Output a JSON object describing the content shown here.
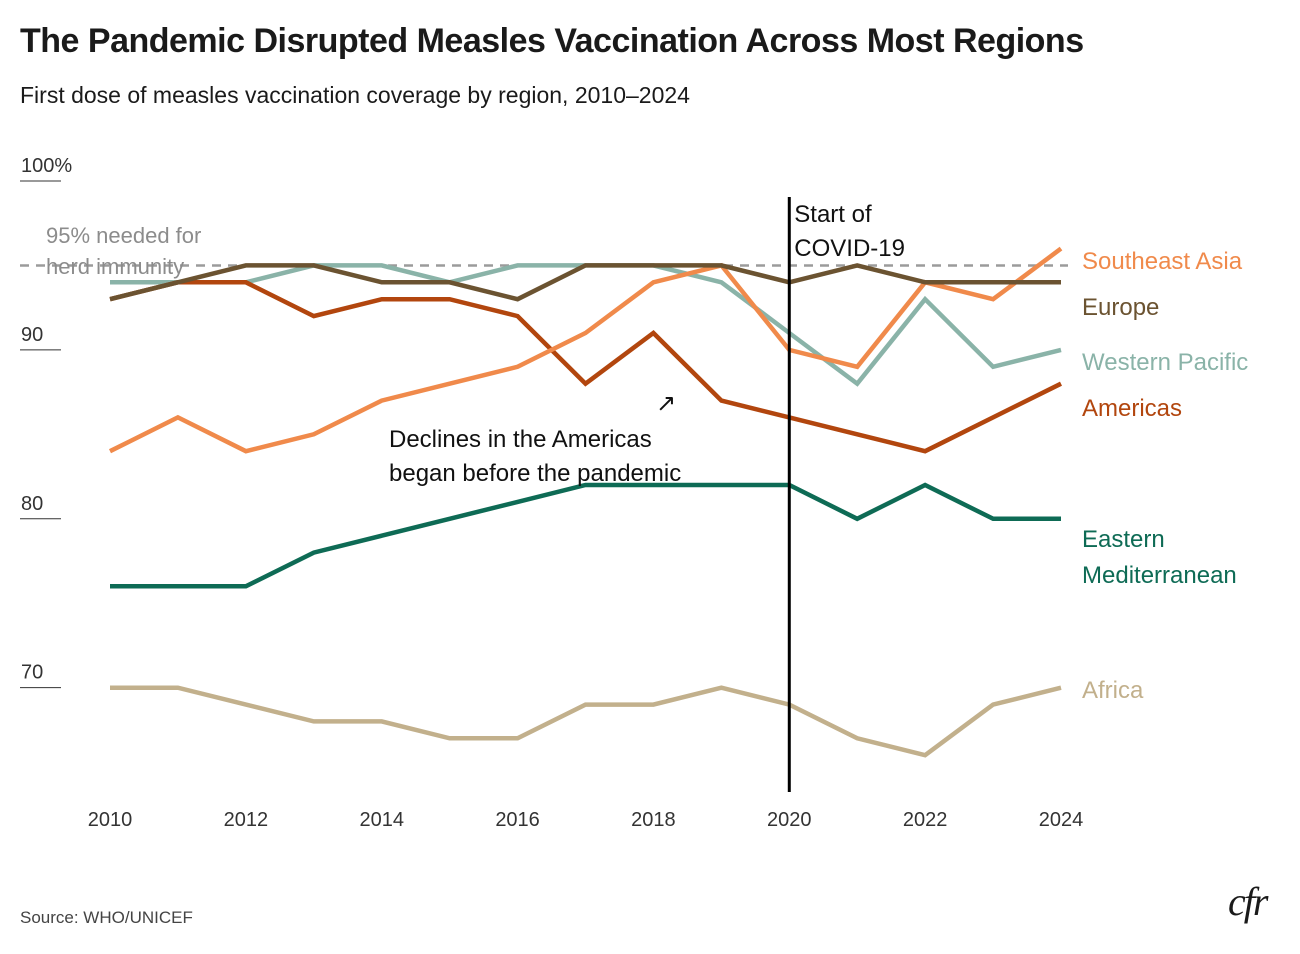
{
  "title": "The Pandemic Disrupted Measles Vaccination Across Most Regions",
  "subtitle": "First dose of measles vaccination coverage by region, 2010–2024",
  "source": "Source: WHO/UNICEF",
  "logo": "cfr",
  "chart_data": {
    "type": "line",
    "title": "The Pandemic Disrupted Measles Vaccination Across Most Regions",
    "subtitle": "First dose of measles vaccination coverage by region, 2010–2024",
    "xlabel": "",
    "ylabel": "",
    "xlim": [
      2010,
      2024
    ],
    "ylim": [
      64,
      100
    ],
    "grid": false,
    "legend": "direct labels at right end of each line",
    "x": [
      2010,
      2011,
      2012,
      2013,
      2014,
      2015,
      2016,
      2017,
      2018,
      2019,
      2020,
      2021,
      2022,
      2023,
      2024
    ],
    "x_ticks": [
      {
        "value": 2010,
        "label": "2010"
      },
      {
        "value": 2012,
        "label": "2012"
      },
      {
        "value": 2014,
        "label": "2014"
      },
      {
        "value": 2016,
        "label": "2016"
      },
      {
        "value": 2018,
        "label": "2018"
      },
      {
        "value": 2020,
        "label": "2020"
      },
      {
        "value": 2022,
        "label": "2022"
      },
      {
        "value": 2024,
        "label": "2024"
      }
    ],
    "y_ticks": [
      {
        "value": 100,
        "label": "100%"
      },
      {
        "value": 90,
        "label": "90"
      },
      {
        "value": 80,
        "label": "80"
      },
      {
        "value": 70,
        "label": "70"
      }
    ],
    "series": [
      {
        "name": "Africa",
        "label_lines": [
          "Africa"
        ],
        "color": "#c2b08c",
        "values": [
          70,
          70,
          69,
          68,
          68,
          67,
          67,
          69,
          69,
          70,
          69,
          67,
          66,
          69,
          70
        ]
      },
      {
        "name": "Eastern Mediterranean",
        "label_lines": [
          "Eastern",
          "Mediterranean"
        ],
        "color": "#0e6b55",
        "values": [
          76,
          76,
          76,
          78,
          79,
          80,
          81,
          82,
          82,
          82,
          82,
          80,
          82,
          80,
          80
        ]
      },
      {
        "name": "Western Pacific",
        "label_lines": [
          "Western Pacific"
        ],
        "color": "#8ab3a8",
        "values": [
          94,
          94,
          94,
          95,
          95,
          94,
          95,
          95,
          95,
          94,
          91,
          88,
          93,
          89,
          90
        ]
      },
      {
        "name": "Americas",
        "label_lines": [
          "Americas"
        ],
        "color": "#b2460e",
        "values": [
          93,
          94,
          94,
          92,
          93,
          93,
          92,
          88,
          91,
          87,
          86,
          85,
          84,
          86,
          88
        ]
      },
      {
        "name": "Southeast Asia",
        "label_lines": [
          "Southeast Asia"
        ],
        "color": "#f08a4b",
        "values": [
          84,
          86,
          84,
          85,
          87,
          88,
          89,
          91,
          94,
          95,
          90,
          89,
          94,
          93,
          96
        ]
      },
      {
        "name": "Europe",
        "label_lines": [
          "Europe"
        ],
        "color": "#6b5331",
        "values": [
          93,
          94,
          95,
          95,
          94,
          94,
          93,
          95,
          95,
          95,
          94,
          95,
          94,
          94,
          94
        ]
      }
    ],
    "reference_line": {
      "value": 95,
      "label_lines": [
        "95% needed for",
        "herd immunity"
      ],
      "color": "#9b9b9b",
      "style": "dashed"
    },
    "event_line": {
      "x": 2020,
      "label_lines": [
        "Start of",
        "COVID-19"
      ],
      "color": "#000000"
    },
    "annotation": {
      "text_lines": [
        "Declines in the Americas",
        "began before the pandemic"
      ],
      "arrow": "↗"
    }
  }
}
